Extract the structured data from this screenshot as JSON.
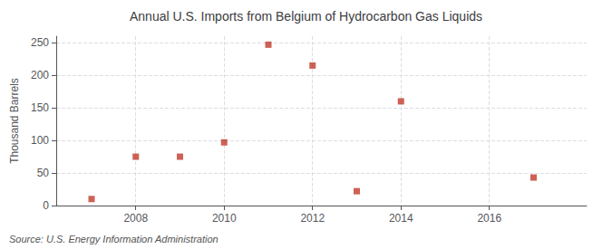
{
  "chart_data": {
    "type": "scatter",
    "title": "Annual U.S. Imports from Belgium of Hydrocarbon Gas Liquids",
    "ylabel": "Thousand Barrels",
    "annotation": "Source: U.S. Energy Information Administration",
    "x": [
      2007,
      2008,
      2009,
      2010,
      2011,
      2012,
      2013,
      2014,
      2017
    ],
    "values": [
      10,
      75,
      75,
      97,
      247,
      215,
      22,
      160,
      43
    ],
    "color": "#c0392b",
    "marker": "square",
    "xlim": [
      2006.2,
      2018.2
    ],
    "xticks": [
      2008,
      2010,
      2012,
      2014,
      2016
    ],
    "ylim": [
      0,
      260
    ],
    "yticks": [
      0,
      50,
      100,
      150,
      200,
      250
    ],
    "grid": true
  }
}
